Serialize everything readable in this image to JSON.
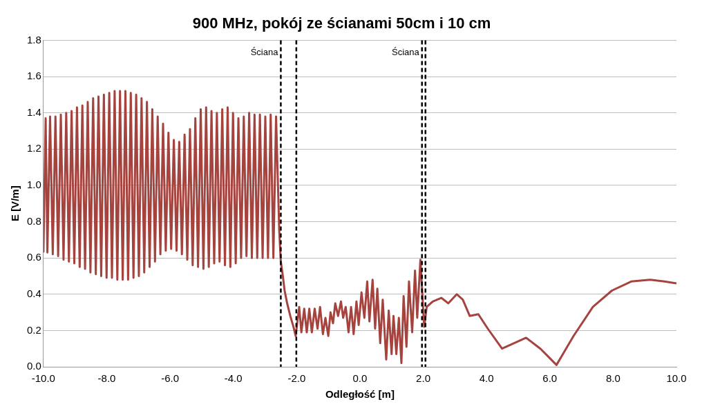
{
  "chart_data": {
    "type": "line",
    "title": "900 MHz, pokój ze ścianami 50cm i 10 cm",
    "xlabel": "Odległość [m]",
    "ylabel": "E [V/m]",
    "xlim": [
      -10,
      10
    ],
    "xticks": [
      {
        "value": -10,
        "label": "-10.0"
      },
      {
        "value": -8,
        "label": "-8.0"
      },
      {
        "value": -6,
        "label": "-6.0"
      },
      {
        "value": -4,
        "label": "-4.0"
      },
      {
        "value": -2,
        "label": "-2.0"
      },
      {
        "value": 0,
        "label": "0.0"
      },
      {
        "value": 2,
        "label": "2.0"
      },
      {
        "value": 4,
        "label": "4.0"
      },
      {
        "value": 6,
        "label": "6.0"
      },
      {
        "value": 8,
        "label": "8.0"
      },
      {
        "value": 10,
        "label": "10.0"
      }
    ],
    "ylim": [
      0,
      1.8
    ],
    "yticks": [
      {
        "value": 0,
        "label": "0.0"
      },
      {
        "value": 0.2,
        "label": "0.2"
      },
      {
        "value": 0.4,
        "label": "0.4"
      },
      {
        "value": 0.6,
        "label": "0.6"
      },
      {
        "value": 0.8,
        "label": "0.8"
      },
      {
        "value": 1,
        "label": "1.0"
      },
      {
        "value": 1.2,
        "label": "1.2"
      },
      {
        "value": 1.4,
        "label": "1.4"
      },
      {
        "value": 1.6,
        "label": "1.6"
      },
      {
        "value": 1.8,
        "label": "1.8"
      }
    ],
    "grid": "y",
    "legend": false,
    "marker": "none",
    "line_style": "solid",
    "ref_lines": [
      {
        "axis": "x",
        "value": -2.5,
        "label": "Ściana",
        "color": "#000000",
        "line_style": "dashed"
      },
      {
        "axis": "x",
        "value": -2.01,
        "color": "#000000",
        "line_style": "dashed"
      },
      {
        "axis": "x",
        "value": 1.96,
        "label": "Ściana",
        "color": "#000000",
        "line_style": "dashed"
      },
      {
        "axis": "x",
        "value": 2.07,
        "color": "#000000",
        "line_style": "dashed"
      }
    ],
    "series": [
      {
        "color": "#a5433f",
        "x": [
          -10,
          -9.93,
          -9.875,
          -9.79,
          -9.705,
          -9.62,
          -9.535,
          -9.45,
          -9.365,
          -9.28,
          -9.195,
          -9.11,
          -9.025,
          -8.94,
          -8.855,
          -8.77,
          -8.685,
          -8.6,
          -8.515,
          -8.43,
          -8.345,
          -8.26,
          -8.175,
          -8.09,
          -8.005,
          -7.92,
          -7.835,
          -7.75,
          -7.665,
          -7.58,
          -7.495,
          -7.41,
          -7.325,
          -7.24,
          -7.155,
          -7.07,
          -6.985,
          -6.9,
          -6.815,
          -6.73,
          -6.645,
          -6.56,
          -6.475,
          -6.39,
          -6.305,
          -6.22,
          -6.135,
          -6.05,
          -5.965,
          -5.88,
          -5.795,
          -5.71,
          -5.625,
          -5.54,
          -5.455,
          -5.37,
          -5.285,
          -5.2,
          -5.115,
          -5.03,
          -4.945,
          -4.86,
          -4.775,
          -4.69,
          -4.605,
          -4.52,
          -4.435,
          -4.35,
          -4.265,
          -4.18,
          -4.095,
          -4.01,
          -3.925,
          -3.84,
          -3.755,
          -3.67,
          -3.585,
          -3.5,
          -3.415,
          -3.33,
          -3.245,
          -3.16,
          -3.075,
          -2.99,
          -2.905,
          -2.82,
          -2.735,
          -2.65,
          -2.55,
          -2.5,
          -2.45,
          -2.38,
          -2.3,
          -2.2,
          -2.1,
          -2.03,
          -1.92,
          -1.85,
          -1.76,
          -1.68,
          -1.6,
          -1.52,
          -1.43,
          -1.34,
          -1.26,
          -1.17,
          -1.09,
          -1,
          -0.93,
          -0.85,
          -0.78,
          -0.69,
          -0.6,
          -0.53,
          -0.45,
          -0.36,
          -0.28,
          -0.2,
          -0.11,
          -0.04,
          0.05,
          0.14,
          0.23,
          0.3,
          0.4,
          0.48,
          0.55,
          0.64,
          0.72,
          0.83,
          0.91,
          1,
          1.06,
          1.15,
          1.23,
          1.31,
          1.38,
          1.47,
          1.55,
          1.65,
          1.74,
          1.81,
          1.91,
          2.03,
          2.11,
          2.3,
          2.57,
          2.79,
          3.06,
          3.25,
          3.47,
          3.74,
          4.04,
          4.49,
          5.25,
          5.7,
          6.21,
          6.75,
          7.36,
          7.96,
          8.57,
          9.17,
          9.62,
          10
        ],
        "values": [
          0.63,
          1.37,
          0.63,
          1.38,
          0.62,
          1.38,
          0.61,
          1.39,
          0.59,
          1.4,
          0.58,
          1.41,
          0.57,
          1.43,
          0.55,
          1.44,
          0.54,
          1.46,
          0.52,
          1.48,
          0.51,
          1.49,
          0.5,
          1.5,
          0.49,
          1.51,
          0.49,
          1.52,
          0.48,
          1.52,
          0.48,
          1.52,
          0.48,
          1.51,
          0.49,
          1.5,
          0.5,
          1.48,
          0.52,
          1.46,
          0.55,
          1.42,
          0.58,
          1.38,
          0.62,
          1.34,
          0.64,
          1.29,
          0.65,
          1.25,
          0.64,
          1.24,
          0.62,
          1.28,
          0.59,
          1.31,
          0.56,
          1.37,
          0.55,
          1.42,
          0.54,
          1.43,
          0.55,
          1.41,
          0.57,
          1.4,
          0.58,
          1.42,
          0.56,
          1.43,
          0.55,
          1.4,
          0.57,
          1.37,
          0.6,
          1.38,
          0.61,
          1.4,
          0.6,
          1.39,
          0.6,
          1.39,
          0.6,
          1.38,
          0.6,
          1.39,
          0.6,
          1.38,
          0.75,
          0.58,
          0.52,
          0.42,
          0.35,
          0.28,
          0.22,
          0.17,
          0.33,
          0.19,
          0.32,
          0.19,
          0.32,
          0.19,
          0.32,
          0.21,
          0.33,
          0.18,
          0.27,
          0.17,
          0.3,
          0.24,
          0.35,
          0.28,
          0.36,
          0.27,
          0.33,
          0.19,
          0.33,
          0.18,
          0.36,
          0.23,
          0.41,
          0.27,
          0.47,
          0.25,
          0.48,
          0.21,
          0.43,
          0.13,
          0.37,
          0.04,
          0.31,
          0.07,
          0.28,
          0.07,
          0.27,
          0.02,
          0.39,
          0.11,
          0.47,
          0.19,
          0.53,
          0.27,
          0.59,
          0.22,
          0.33,
          0.36,
          0.38,
          0.35,
          0.4,
          0.37,
          0.28,
          0.29,
          0.21,
          0.1,
          0.16,
          0.1,
          0.01,
          0.17,
          0.33,
          0.42,
          0.47,
          0.48,
          0.47,
          0.46
        ]
      }
    ]
  }
}
